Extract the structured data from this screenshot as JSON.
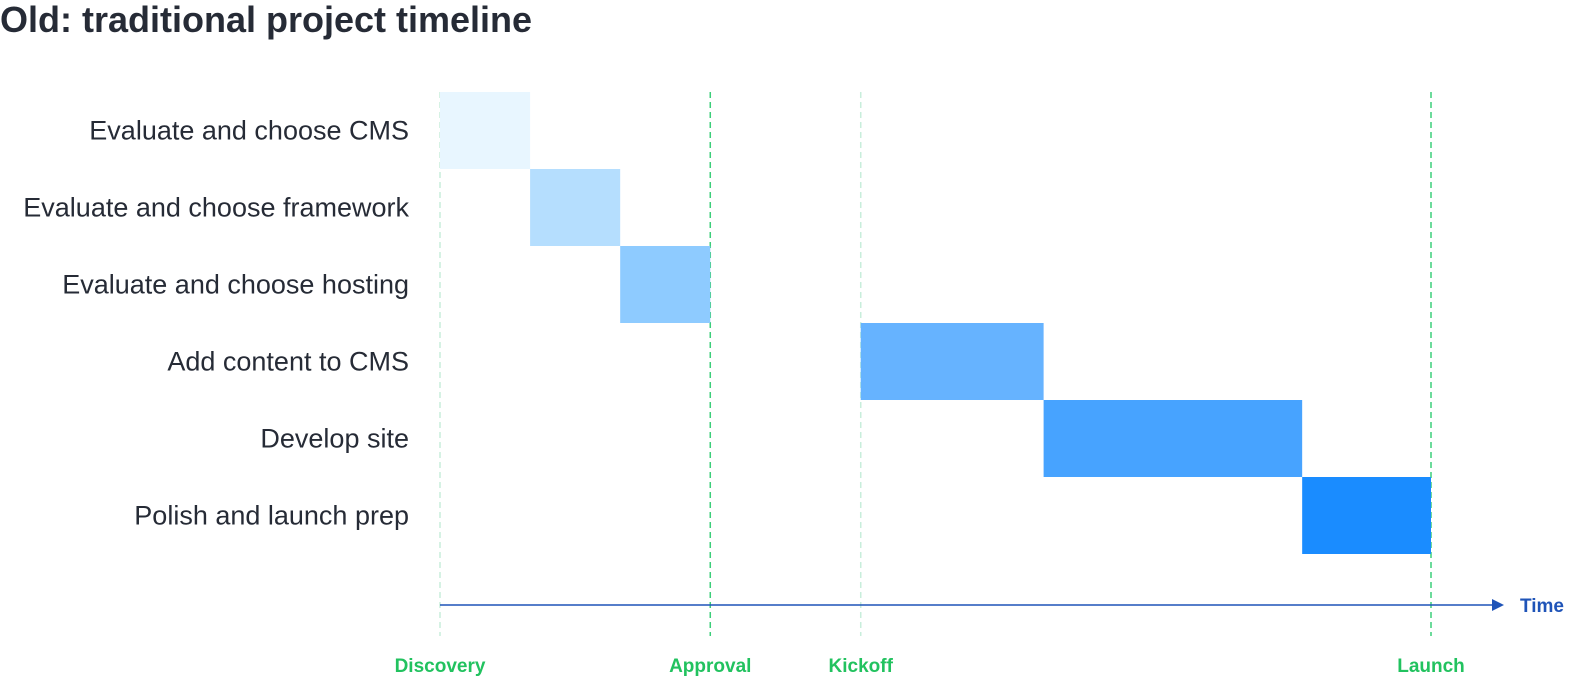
{
  "title": "Old: traditional project timeline",
  "chart_data": {
    "type": "gantt",
    "tasks": [
      {
        "name": "Evaluate and choose CMS",
        "start": 0,
        "end": 1,
        "color": "#e8f6ff"
      },
      {
        "name": "Evaluate and choose framework",
        "start": 1,
        "end": 2,
        "color": "#b5defe"
      },
      {
        "name": "Evaluate and choose hosting",
        "start": 2,
        "end": 3,
        "color": "#8ecbff"
      },
      {
        "name": "Add content to CMS",
        "start": 4.67,
        "end": 6.7,
        "color": "#66b3ff"
      },
      {
        "name": "Develop site",
        "start": 6.7,
        "end": 9.57,
        "color": "#47a3ff"
      },
      {
        "name": "Polish and launch prep",
        "start": 9.57,
        "end": 11,
        "color": "#1a8cff"
      }
    ],
    "milestones": [
      {
        "label": "Discovery",
        "at": 0,
        "line_color": "#c8eedb"
      },
      {
        "label": "Approval",
        "at": 3,
        "line_color": "#3ccf7a"
      },
      {
        "label": "Kickoff",
        "at": 4.67,
        "line_color": "#c8eedb"
      },
      {
        "label": "Launch",
        "at": 11,
        "line_color": "#3ccf7a"
      }
    ],
    "xlim": [
      0,
      11
    ],
    "xlabel": "Time",
    "colors": {
      "milestone_text": "#22c25f",
      "axis": "#1f54b8",
      "label_text": "#262b36"
    }
  }
}
